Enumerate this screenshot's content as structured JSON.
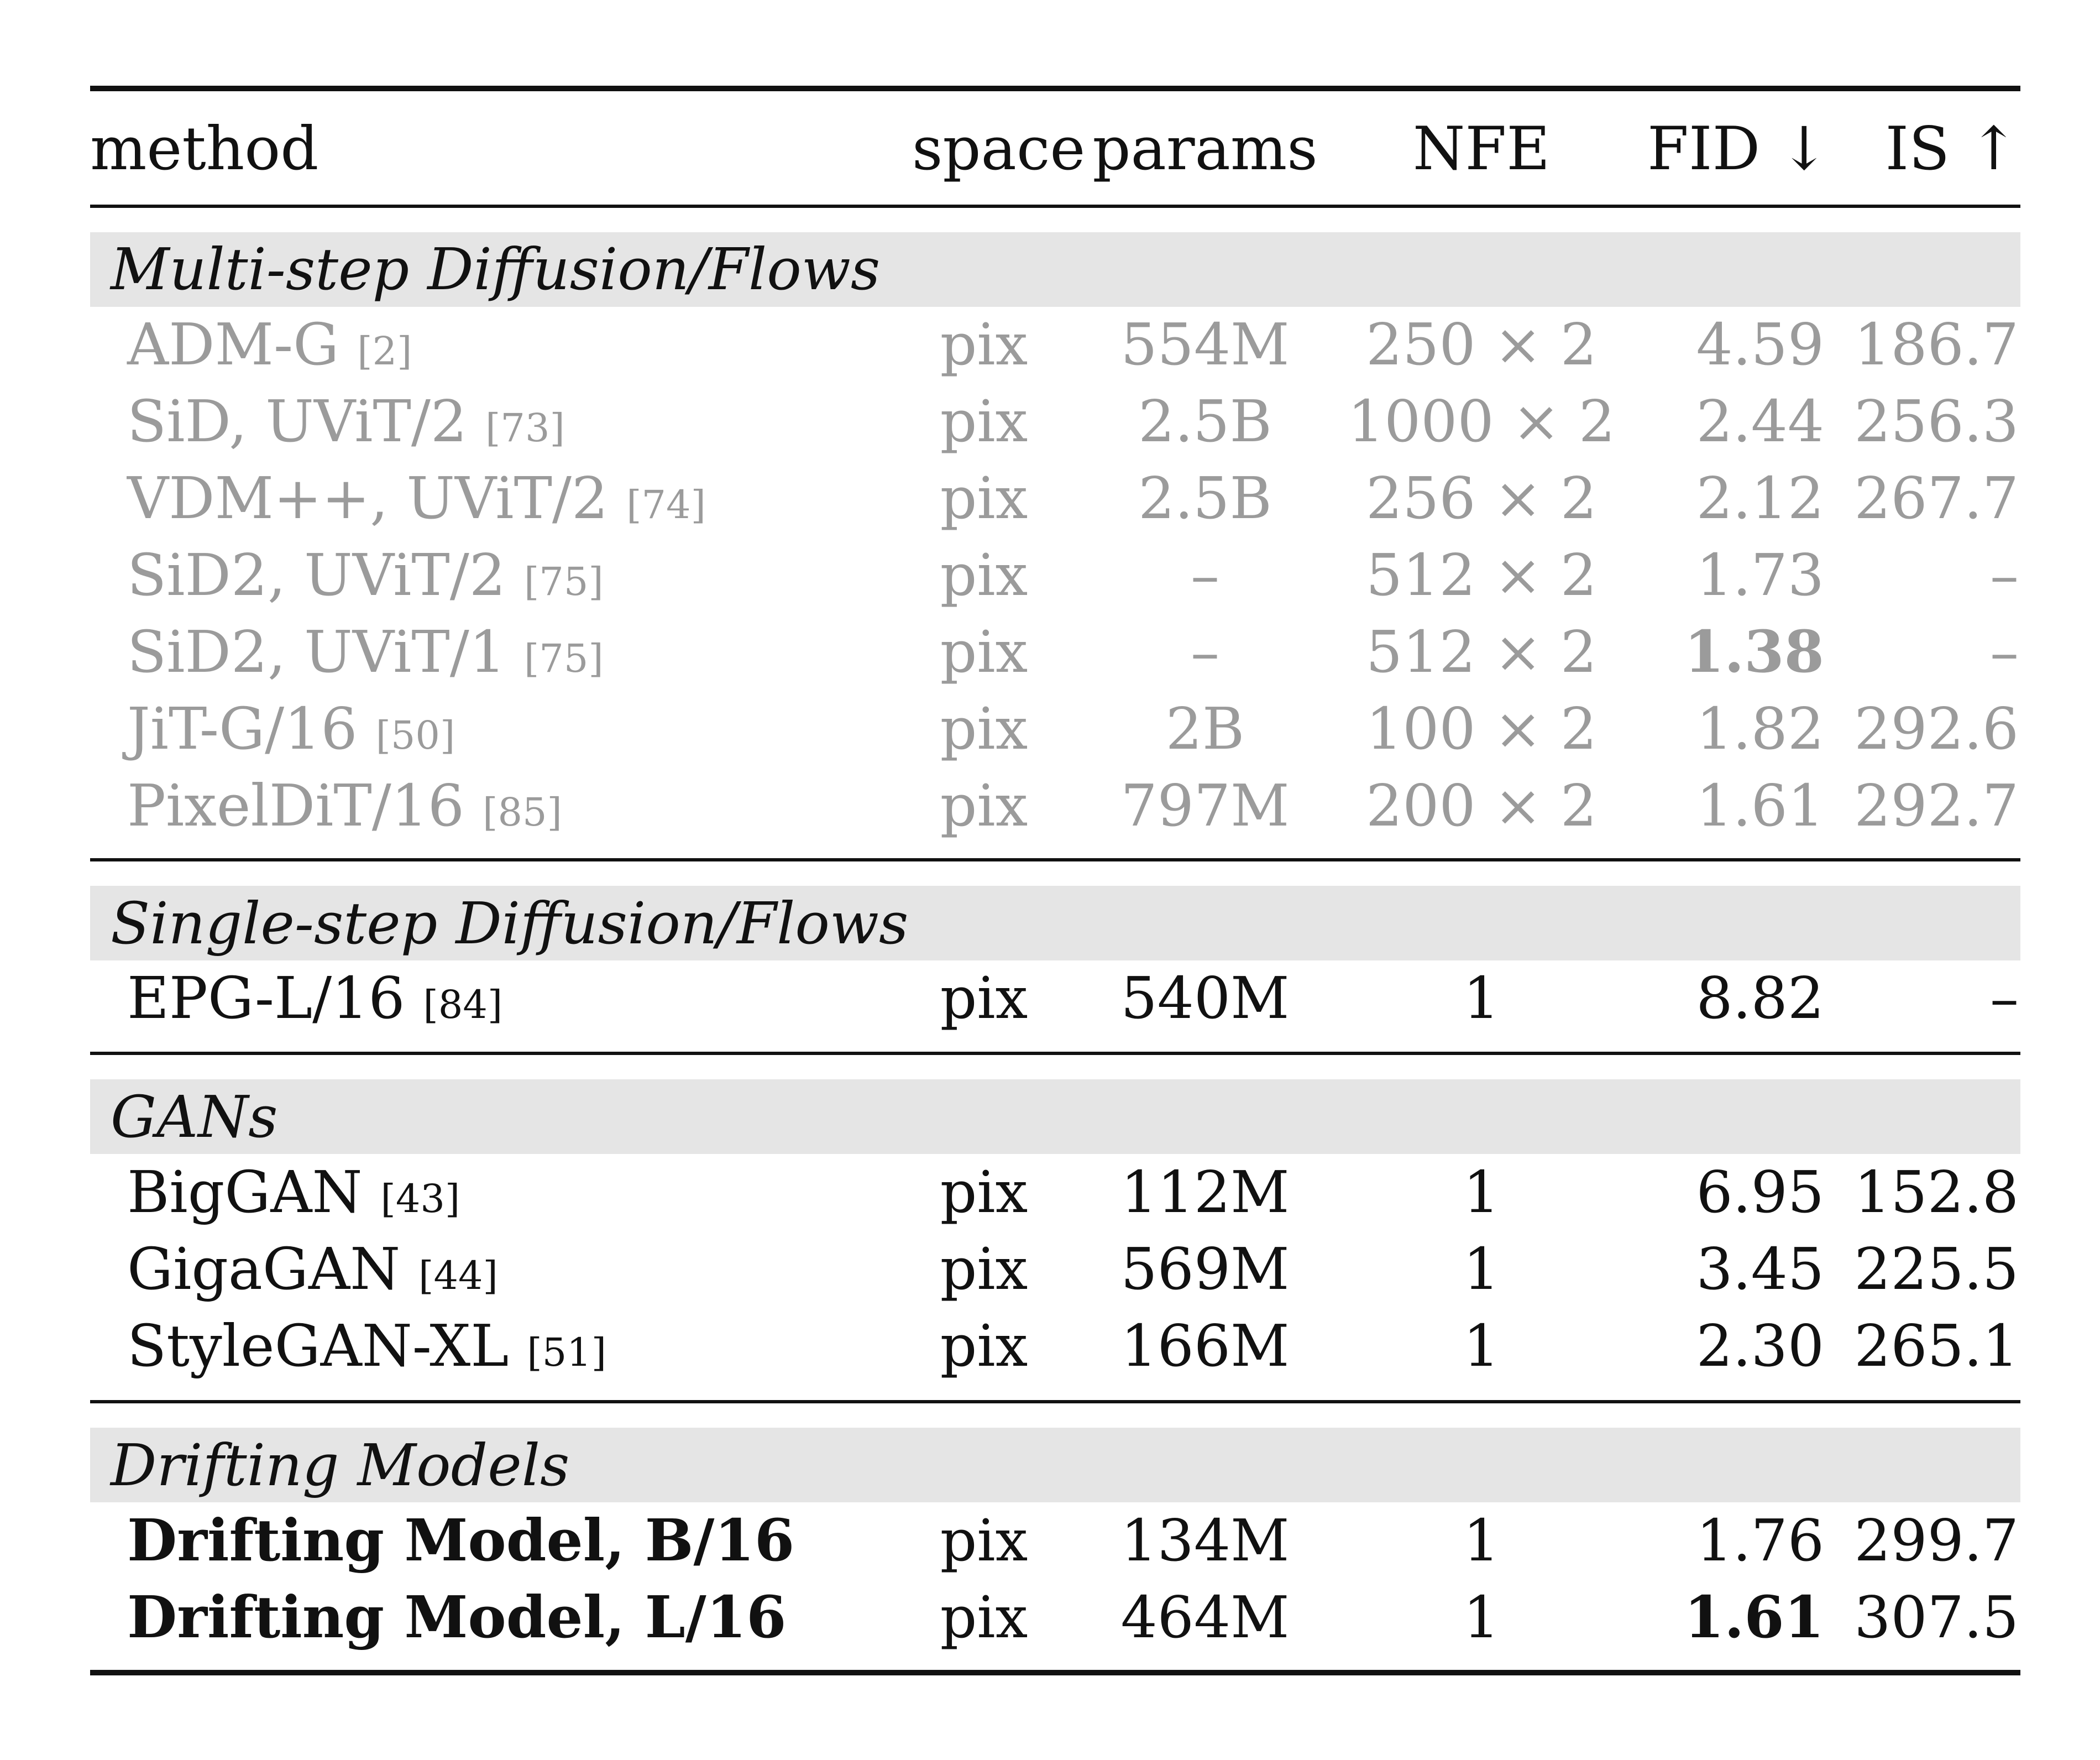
{
  "table": {
    "headers": {
      "method": "method",
      "space": "space",
      "params": "params",
      "nfe": "NFE",
      "fid": "FID ↓",
      "is": "IS ↑"
    },
    "sections": [
      {
        "title": "Multi-step Diffusion/Flows",
        "rows": [
          {
            "method": "ADM-G",
            "ref": "[2]",
            "space": "pix",
            "params": "554M",
            "nfe": "250 × 2",
            "fid": "4.59",
            "is": "186.7"
          },
          {
            "method": "SiD, UViT/2",
            "ref": "[73]",
            "space": "pix",
            "params": "2.5B",
            "nfe": "1000 × 2",
            "fid": "2.44",
            "is": "256.3"
          },
          {
            "method": "VDM++, UViT/2",
            "ref": "[74]",
            "space": "pix",
            "params": "2.5B",
            "nfe": "256 × 2",
            "fid": "2.12",
            "is": "267.7"
          },
          {
            "method": "SiD2, UViT/2",
            "ref": "[75]",
            "space": "pix",
            "params": "–",
            "nfe": "512 × 2",
            "fid": "1.73",
            "is": "–"
          },
          {
            "method": "SiD2, UViT/1",
            "ref": "[75]",
            "space": "pix",
            "params": "–",
            "nfe": "512 × 2",
            "fid": "1.38",
            "is": "–"
          },
          {
            "method": "JiT-G/16",
            "ref": "[50]",
            "space": "pix",
            "params": "2B",
            "nfe": "100 × 2",
            "fid": "1.82",
            "is": "292.6"
          },
          {
            "method": "PixelDiT/16",
            "ref": "[85]",
            "space": "pix",
            "params": "797M",
            "nfe": "200 × 2",
            "fid": "1.61",
            "is": "292.7"
          }
        ]
      },
      {
        "title": "Single-step Diffusion/Flows",
        "rows": [
          {
            "method": "EPG-L/16",
            "ref": "[84]",
            "space": "pix",
            "params": "540M",
            "nfe": "1",
            "fid": "8.82",
            "is": "–"
          }
        ]
      },
      {
        "title": "GANs",
        "rows": [
          {
            "method": "BigGAN",
            "ref": "[43]",
            "space": "pix",
            "params": "112M",
            "nfe": "1",
            "fid": "6.95",
            "is": "152.8"
          },
          {
            "method": "GigaGAN",
            "ref": "[44]",
            "space": "pix",
            "params": "569M",
            "nfe": "1",
            "fid": "3.45",
            "is": "225.5"
          },
          {
            "method": "StyleGAN-XL",
            "ref": "[51]",
            "space": "pix",
            "params": "166M",
            "nfe": "1",
            "fid": "2.30",
            "is": "265.1"
          }
        ]
      },
      {
        "title": "Drifting Models",
        "rows": [
          {
            "method": "Drifting Model, B/16",
            "ref": "",
            "space": "pix",
            "params": "134M",
            "nfe": "1",
            "fid": "1.76",
            "is": "299.7"
          },
          {
            "method": "Drifting Model, L/16",
            "ref": "",
            "space": "pix",
            "params": "464M",
            "nfe": "1",
            "fid": "1.61",
            "is": "307.5"
          }
        ]
      }
    ]
  }
}
